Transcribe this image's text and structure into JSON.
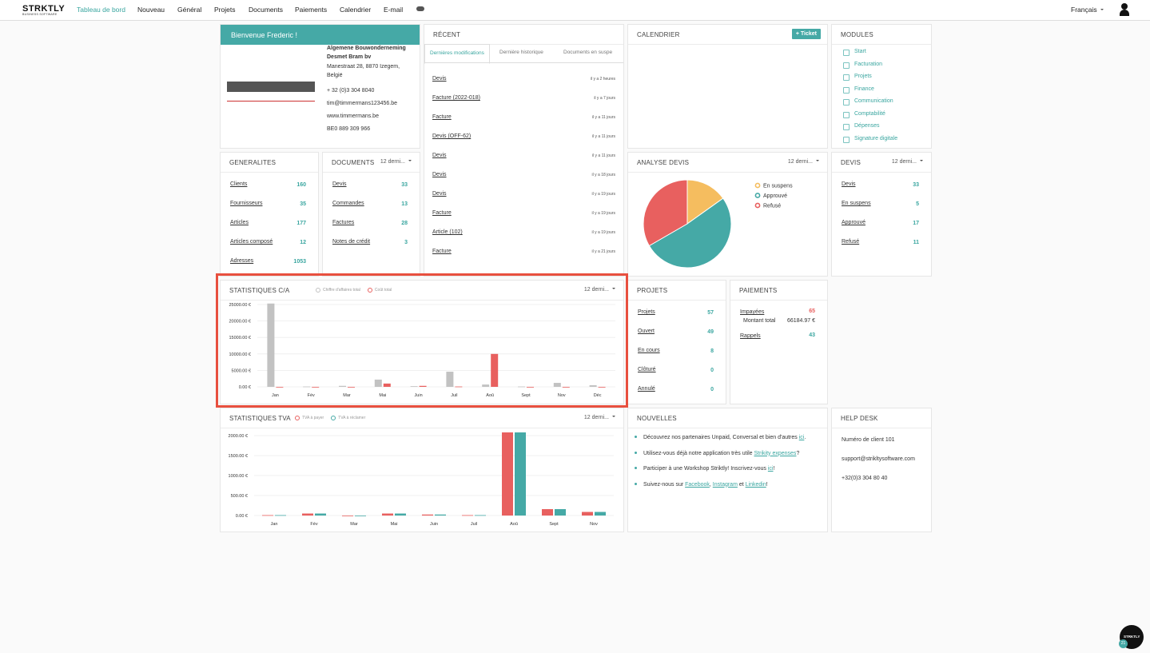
{
  "nav": {
    "logo": "STRKTLY",
    "logo_sub": "BUSINESS SOFTWARE",
    "items": [
      "Tableau de bord",
      "Nouveau",
      "Général",
      "Projets",
      "Documents",
      "Paiements",
      "Calendrier",
      "E-mail"
    ],
    "language": "Français"
  },
  "welcome": {
    "title": "Bienvenue Frederic !",
    "company": [
      "Algemene Bouwonderneming",
      "Desmet Bram bv"
    ],
    "address": [
      "Manestraat 28, 8870 Izegem,",
      "België"
    ],
    "phone": "+ 32 (0)3 304 8040",
    "email": "tim@timmermans123456.be",
    "web": "www.timmermans.be",
    "vat": "BE0 889 309 966"
  },
  "recent": {
    "title": "RÉCENT",
    "tabs": [
      "Dernières modifications",
      "Dernière historique",
      "Documents en suspe"
    ],
    "items": [
      {
        "label": "Devis",
        "time": "il y a 2 heures"
      },
      {
        "label": "Facture (2022-018)",
        "time": "il y a 7 jours"
      },
      {
        "label": "Facture",
        "time": "il y a 11 jours"
      },
      {
        "label": "Devis (OFF-62)",
        "time": "il y a 11 jours"
      },
      {
        "label": "Devis",
        "time": "il y a 11 jours"
      },
      {
        "label": "Devis",
        "time": "il y a 18 jours"
      },
      {
        "label": "Devis",
        "time": "il y a 19 jours"
      },
      {
        "label": "Facture",
        "time": "il y a 19 jours"
      },
      {
        "label": "Article (102)",
        "time": "il y a 19 jours"
      },
      {
        "label": "Facture",
        "time": "il y a 21 jours"
      }
    ]
  },
  "calendar": {
    "title": "CALENDRIER",
    "button": "+ Ticket"
  },
  "modules": {
    "title": "MODULES",
    "items": [
      "Start",
      "Facturation",
      "Projets",
      "Finance",
      "Communication",
      "Comptabilité",
      "Dépenses",
      "Signature digitale"
    ]
  },
  "generalites": {
    "title": "GENERALITES",
    "rows": [
      {
        "label": "Clients",
        "value": "160"
      },
      {
        "label": "Fournisseurs",
        "value": "35"
      },
      {
        "label": "Articles",
        "value": "177"
      },
      {
        "label": "Articles composé",
        "value": "12"
      },
      {
        "label": "Adresses",
        "value": "1053"
      }
    ]
  },
  "documents": {
    "title": "DOCUMENTS",
    "filter": "12 derni...",
    "rows": [
      {
        "label": "Devis",
        "value": "33"
      },
      {
        "label": "Commandes",
        "value": "13"
      },
      {
        "label": "Factures",
        "value": "28"
      },
      {
        "label": "Notes de crédit",
        "value": "3"
      }
    ]
  },
  "devis": {
    "title": "DEVIS",
    "filter": "12 derni...",
    "rows": [
      {
        "label": "Devis",
        "value": "33"
      },
      {
        "label": "En suspens",
        "value": "5"
      },
      {
        "label": "Approuvé",
        "value": "17"
      },
      {
        "label": "Refusé",
        "value": "11"
      }
    ]
  },
  "projets": {
    "title": "PROJETS",
    "rows": [
      {
        "label": "Projets",
        "value": "57"
      },
      {
        "label": "Ouvert",
        "value": "49"
      },
      {
        "label": "En cours",
        "value": "8"
      },
      {
        "label": "Clôturé",
        "value": "0"
      },
      {
        "label": "Annulé",
        "value": "0"
      }
    ]
  },
  "paiements": {
    "title": "PAIEMENTS",
    "unpaid": {
      "label": "Impayées",
      "value": "65"
    },
    "total": {
      "label": "Montant total",
      "value": "66184.97 €"
    },
    "reminders": {
      "label": "Rappels",
      "value": "43"
    }
  },
  "news": {
    "title": "NOUVELLES",
    "items": [
      [
        {
          "t": "Découvrez nos partenaires Unpaid, Conversal et bien d'autres "
        },
        {
          "a": "ici"
        },
        {
          "t": "."
        }
      ],
      [
        {
          "t": "Utilisez-vous déjà notre application très utile "
        },
        {
          "a": "Strikity expenses"
        },
        {
          "t": "?"
        }
      ],
      [
        {
          "t": "Participer à une Workshop Striktly! Inscrivez-vous "
        },
        {
          "a": "ici"
        },
        {
          "t": "!"
        }
      ],
      [
        {
          "t": "Suivez-nous sur "
        },
        {
          "a": "Facebook"
        },
        {
          "t": ", "
        },
        {
          "a": "Instagram"
        },
        {
          "t": " et "
        },
        {
          "a": "Linkedin"
        },
        {
          "t": "!"
        }
      ]
    ]
  },
  "helpdesk": {
    "title": "HELP DESK",
    "lines": [
      "Numéro de client 101",
      "support@strikltysoftware.com",
      "+32(0)3 304 80 40"
    ]
  },
  "chat": {
    "logo": "STRKTLY",
    "badge": "21"
  },
  "chart_data": [
    {
      "type": "bar",
      "title": "STATISTIQUES C/A",
      "filter": "12 derni...",
      "categories": [
        "Jan",
        "Fév",
        "Mar",
        "Mai",
        "Juin",
        "Juil",
        "Aoû",
        "Sept",
        "Nov",
        "Déc"
      ],
      "series": [
        {
          "name": "Chiffre d'affaires total",
          "color": "#c2c2c2",
          "values": [
            25300,
            100,
            300,
            2200,
            200,
            4600,
            700,
            100,
            1200,
            500
          ]
        },
        {
          "name": "Coût total",
          "color": "#e8605f",
          "values": [
            0,
            0,
            0,
            1000,
            300,
            100,
            10000,
            0,
            0,
            0
          ]
        }
      ],
      "ylim": [
        0,
        25000
      ],
      "yticks": [
        {
          "value": 0,
          "label": "0.00 €"
        },
        {
          "value": 5000,
          "label": "5000.00 €"
        },
        {
          "value": 10000,
          "label": "10000.00 €"
        },
        {
          "value": 15000,
          "label": "15000.00 €"
        },
        {
          "value": 20000,
          "label": "20000.00 €"
        },
        {
          "value": 25000,
          "label": "25000.00 €"
        }
      ],
      "grid": true
    },
    {
      "type": "pie",
      "title": "ANALYSE DEVIS",
      "filter": "12 derni...",
      "categories": [
        "En suspens",
        "Approuvé",
        "Refusé"
      ],
      "values": [
        5,
        17,
        11
      ],
      "colors": [
        "#f5bd5f",
        "#45a9a6",
        "#e8605f"
      ]
    },
    {
      "type": "bar",
      "title": "STATISTIQUES TVA",
      "filter": "12 derni...",
      "categories": [
        "Jan",
        "Fév",
        "Mar",
        "Mai",
        "Juin",
        "Juil",
        "Aoû",
        "Sept",
        "Nov"
      ],
      "series": [
        {
          "name": "TVA à payer",
          "color": "#e8605f",
          "values": [
            10,
            50,
            0,
            50,
            25,
            10,
            2080,
            160,
            90
          ]
        },
        {
          "name": "TVA à réclamer",
          "color": "#45a9a6",
          "values": [
            10,
            50,
            0,
            50,
            25,
            10,
            2080,
            160,
            90
          ]
        }
      ],
      "ylim": [
        0,
        2000
      ],
      "yticks": [
        {
          "value": 0,
          "label": "0.00 €"
        },
        {
          "value": 500,
          "label": "500.00 €"
        },
        {
          "value": 1000,
          "label": "1000.00 €"
        },
        {
          "value": 1500,
          "label": "1500.00 €"
        },
        {
          "value": 2000,
          "label": "2000.00 €"
        }
      ],
      "grid": true
    }
  ]
}
